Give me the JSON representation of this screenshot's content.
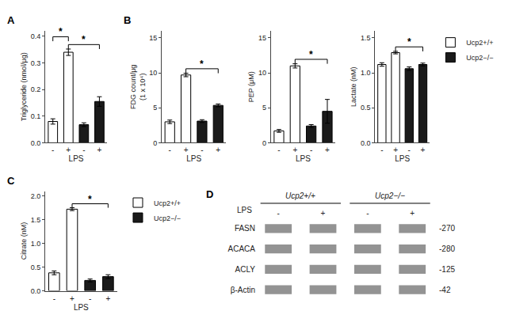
{
  "chart_data": [
    {
      "type": "bar",
      "title": "A",
      "xlabel": "LPS",
      "ylabel": "Triglyceride (nmol/μg)",
      "categories": [
        "-",
        "+",
        "-",
        "+"
      ],
      "series": [
        {
          "color": "#ffffff",
          "values": [
            0.08,
            0.34,
            null,
            null
          ],
          "errors": [
            0.01,
            0.012,
            null,
            null
          ]
        },
        {
          "color": "#1a1a1a",
          "values": [
            null,
            null,
            0.068,
            0.155
          ],
          "errors": [
            null,
            null,
            0.007,
            0.018
          ]
        }
      ],
      "ylim": [
        0,
        0.42
      ],
      "yticks": [
        {
          "value": 0.0,
          "label": "0.0"
        },
        0.1,
        0.2,
        0.3,
        0.4
      ],
      "annotations": [
        {
          "text": "*",
          "between": [
            1,
            3
          ]
        },
        {
          "text": "*",
          "between": [
            0,
            1
          ]
        }
      ],
      "grid": false
    },
    {
      "type": "bar",
      "title": "B",
      "xlabel": "LPS",
      "ylabel": "FDG count/μg\n(1 x 10⁴)",
      "categories": [
        "-",
        "+",
        "-",
        "+"
      ],
      "series": [
        {
          "color": "#ffffff",
          "values": [
            3.0,
            9.7,
            null,
            null
          ],
          "errors": [
            0.25,
            0.25,
            null,
            null
          ]
        },
        {
          "color": "#1a1a1a",
          "values": [
            null,
            null,
            3.1,
            5.35
          ],
          "errors": [
            null,
            null,
            0.2,
            0.2
          ]
        }
      ],
      "ylim": [
        0,
        16
      ],
      "yticks": [
        0,
        5,
        10,
        15
      ],
      "annotations": [
        {
          "text": "*",
          "between": [
            1,
            3
          ]
        }
      ],
      "grid": false
    },
    {
      "type": "bar",
      "xlabel": "LPS",
      "ylabel": "PEP (μM)",
      "categories": [
        "-",
        "+",
        "-",
        "+"
      ],
      "series": [
        {
          "color": "#ffffff",
          "values": [
            1.7,
            11.0,
            null,
            null
          ],
          "errors": [
            0.2,
            0.3,
            null,
            null
          ]
        },
        {
          "color": "#1a1a1a",
          "values": [
            null,
            null,
            2.4,
            4.5
          ],
          "errors": [
            null,
            null,
            0.2,
            1.7
          ]
        }
      ],
      "ylim": [
        0,
        16
      ],
      "yticks": [
        0,
        5,
        10,
        15
      ],
      "annotations": [
        {
          "text": "*",
          "between": [
            1,
            3
          ]
        }
      ],
      "grid": false
    },
    {
      "type": "bar",
      "xlabel": "LPS",
      "ylabel": "Lactate (nM)",
      "categories": [
        "-",
        "+",
        "-",
        "+"
      ],
      "series": [
        {
          "name": "Ucp2+/+",
          "color": "#ffffff",
          "values": [
            1.12,
            1.29,
            null,
            null
          ],
          "errors": [
            0.025,
            0.018,
            null,
            null
          ]
        },
        {
          "name": "Ucp2−/−",
          "color": "#1a1a1a",
          "values": [
            null,
            null,
            1.06,
            1.12
          ],
          "errors": [
            null,
            null,
            0.025,
            0.02
          ]
        }
      ],
      "ylim": [
        0,
        1.6
      ],
      "yticks": [
        {
          "value": 0.0,
          "label": "0.0"
        },
        0.5,
        {
          "value": 1.0,
          "label": "1.0"
        },
        1.5
      ],
      "annotations": [
        {
          "text": "*",
          "between": [
            1,
            3
          ]
        }
      ],
      "legend": "upper right",
      "grid": false
    },
    {
      "type": "bar",
      "title": "C",
      "xlabel": "LPS",
      "ylabel": "Citrate (nM)",
      "categories": [
        "-",
        "+",
        "-",
        "+"
      ],
      "series": [
        {
          "name": "Ucp2+/+",
          "color": "#ffffff",
          "values": [
            0.38,
            1.72,
            null,
            null
          ],
          "errors": [
            0.04,
            0.03,
            null,
            null
          ]
        },
        {
          "name": "Ucp2−/−",
          "color": "#1a1a1a",
          "values": [
            null,
            null,
            0.22,
            0.3
          ],
          "errors": [
            null,
            null,
            0.03,
            0.04
          ]
        }
      ],
      "ylim": [
        0,
        2.1
      ],
      "yticks": [
        {
          "value": 0.0,
          "label": "0.0"
        },
        0.5,
        {
          "value": 1.0,
          "label": "1.0"
        },
        1.5,
        {
          "value": 2.0,
          "label": "2.0"
        }
      ],
      "annotations": [
        {
          "text": "*",
          "between": [
            1,
            3
          ]
        }
      ],
      "legend": "upper right",
      "grid": false
    },
    {
      "type": "blot",
      "title": "D",
      "xlabel": "LPS",
      "categories": [
        "-",
        "+",
        "-",
        "+"
      ],
      "y": [
        "FASN",
        "ACACA",
        "ACLY",
        "β-Actin"
      ],
      "annotations": [
        "-270",
        "-280",
        "-125",
        "-42"
      ],
      "series": [
        {
          "name": "Ucp2+/+"
        },
        {
          "name": "Ucp2−/−"
        }
      ],
      "grid": false
    }
  ]
}
